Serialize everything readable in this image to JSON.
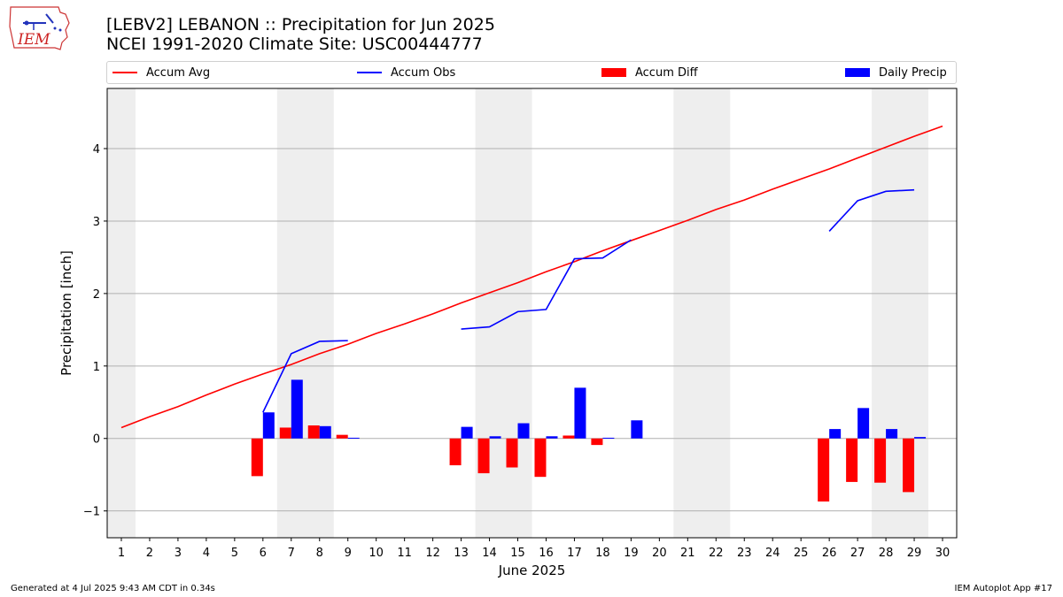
{
  "logo": {
    "text": "IEM"
  },
  "title": {
    "line1": "[LEBV2] LEBANON :: Precipitation for Jun 2025",
    "line2": "NCEI 1991-2020 Climate Site: USC00444777"
  },
  "legend": [
    {
      "label": "Accum Avg",
      "kind": "line",
      "color": "#ff0000"
    },
    {
      "label": "Accum Obs",
      "kind": "line",
      "color": "#0000ff"
    },
    {
      "label": "Accum Diff",
      "kind": "bar",
      "color": "#ff0000"
    },
    {
      "label": "Daily Precip",
      "kind": "bar",
      "color": "#0000ff"
    }
  ],
  "footer": {
    "left": "Generated at 4 Jul 2025 9:43 AM CDT in 0.34s",
    "right": "IEM Autoplot App #17"
  },
  "chart_data": {
    "type": "bar",
    "xlabel": "June 2025",
    "ylabel": "Precipitation [inch]",
    "xlim": [
      0.5,
      30.5
    ],
    "ylim": [
      -1.37,
      4.83
    ],
    "xticks": [
      "1",
      "2",
      "3",
      "4",
      "5",
      "6",
      "7",
      "8",
      "9",
      "10",
      "11",
      "12",
      "13",
      "14",
      "15",
      "16",
      "17",
      "18",
      "19",
      "20",
      "21",
      "22",
      "23",
      "24",
      "25",
      "26",
      "27",
      "28",
      "29",
      "30"
    ],
    "yticks": [
      -1,
      0,
      1,
      2,
      3,
      4
    ],
    "grid": "y",
    "weekend_shading": [
      [
        0.5,
        1.5
      ],
      [
        6.5,
        8.5
      ],
      [
        13.5,
        15.5
      ],
      [
        20.5,
        22.5
      ],
      [
        27.5,
        29.5
      ]
    ],
    "accum_avg": {
      "days": [
        1,
        2,
        3,
        4,
        5,
        6,
        7,
        8,
        9,
        10,
        11,
        12,
        13,
        14,
        15,
        16,
        17,
        18,
        19,
        20,
        21,
        22,
        23,
        24,
        25,
        26,
        27,
        28,
        29,
        30
      ],
      "values": [
        0.15,
        0.3,
        0.44,
        0.6,
        0.75,
        0.89,
        1.02,
        1.17,
        1.3,
        1.45,
        1.58,
        1.72,
        1.87,
        2.01,
        2.15,
        2.3,
        2.44,
        2.59,
        2.73,
        2.87,
        3.01,
        3.16,
        3.29,
        3.44,
        3.58,
        3.72,
        3.87,
        4.02,
        4.17,
        4.31
      ]
    },
    "accum_obs": [
      {
        "days": [
          6,
          7,
          8,
          9
        ],
        "values": [
          0.36,
          1.17,
          1.34,
          1.35
        ]
      },
      {
        "days": [
          13,
          14,
          15,
          16,
          17,
          18,
          19
        ],
        "values": [
          1.51,
          1.54,
          1.75,
          1.78,
          2.48,
          2.49,
          2.74
        ]
      },
      {
        "days": [
          26,
          27,
          28,
          29
        ],
        "values": [
          2.86,
          3.28,
          3.41,
          3.43
        ]
      }
    ],
    "accum_diff": {
      "days": [
        6,
        7,
        8,
        9,
        13,
        14,
        15,
        16,
        17,
        18,
        26,
        27,
        28,
        29
      ],
      "values": [
        -0.52,
        0.15,
        0.18,
        0.05,
        -0.37,
        -0.48,
        -0.4,
        -0.53,
        0.04,
        -0.09,
        -0.87,
        -0.6,
        -0.61,
        -0.74
      ]
    },
    "daily_precip": {
      "days": [
        6,
        7,
        8,
        9,
        13,
        14,
        15,
        16,
        17,
        18,
        19,
        26,
        27,
        28,
        29
      ],
      "values": [
        0.36,
        0.81,
        0.17,
        0.01,
        0.16,
        0.03,
        0.21,
        0.03,
        0.7,
        0.01,
        0.25,
        0.13,
        0.42,
        0.13,
        0.02
      ]
    }
  }
}
